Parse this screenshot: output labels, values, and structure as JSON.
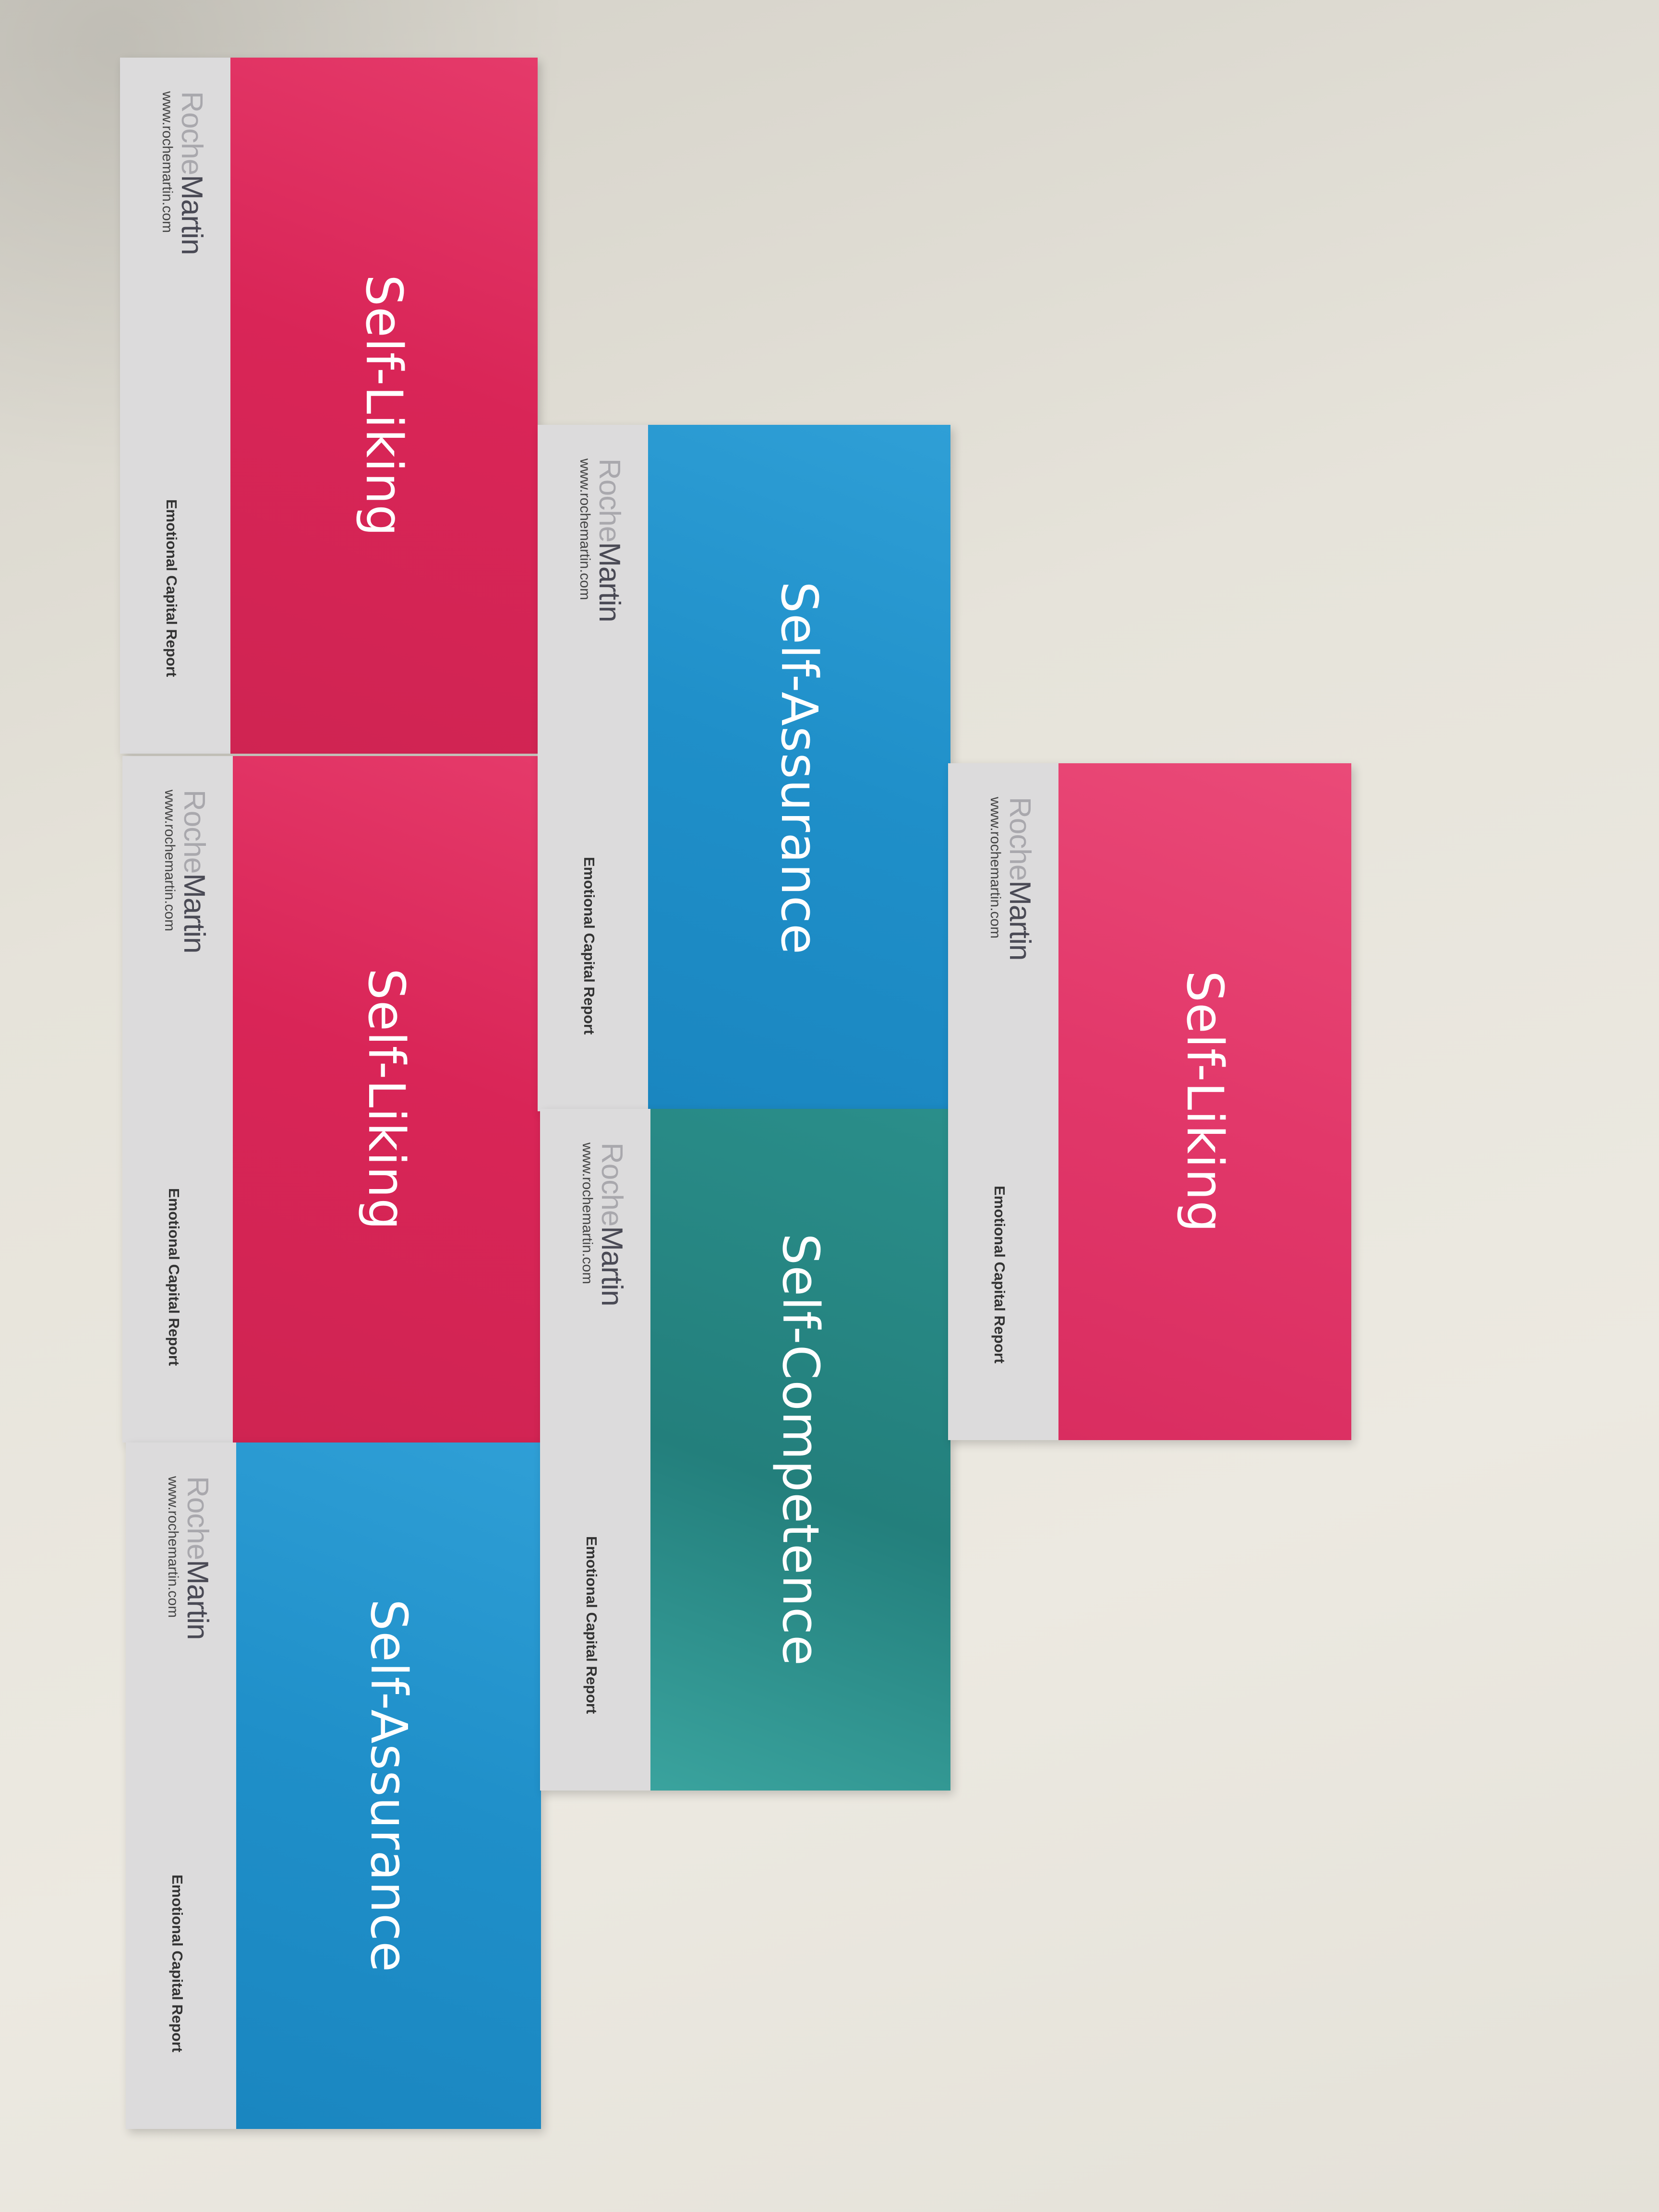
{
  "cards": [
    {
      "title": "Self-Liking",
      "brand_roche": "Roche",
      "brand_martin": "Martin",
      "url": "www.rochemartin.com",
      "report": "Emotional Capital Report",
      "color": "#d92557"
    },
    {
      "title": "Self-Liking",
      "brand_roche": "Roche",
      "brand_martin": "Martin",
      "url": "www.rochemartin.com",
      "report": "Emotional Capital Report",
      "color": "#d92557"
    },
    {
      "title": "Self-Assurance",
      "brand_roche": "Roche",
      "brand_martin": "Martin",
      "url": "www.rochemartin.com",
      "report": "Emotional Capital Report",
      "color": "#1f8fc9"
    },
    {
      "title": "Self-Assurance",
      "brand_roche": "Roche",
      "brand_martin": "Martin",
      "url": "www.rochemartin.com",
      "report": "Emotional Capital Report",
      "color": "#1f8fc9"
    },
    {
      "title": "Self-Competence",
      "brand_roche": "Roche",
      "brand_martin": "Martin",
      "url": "www.rochemartin.com",
      "report": "Emotional Capital Report",
      "color": "#237f7c"
    },
    {
      "title": "Self-Liking",
      "brand_roche": "Roche",
      "brand_martin": "Martin",
      "url": "www.rochemartin.com",
      "report": "Emotional Capital Report",
      "color": "#e53a6a"
    }
  ]
}
